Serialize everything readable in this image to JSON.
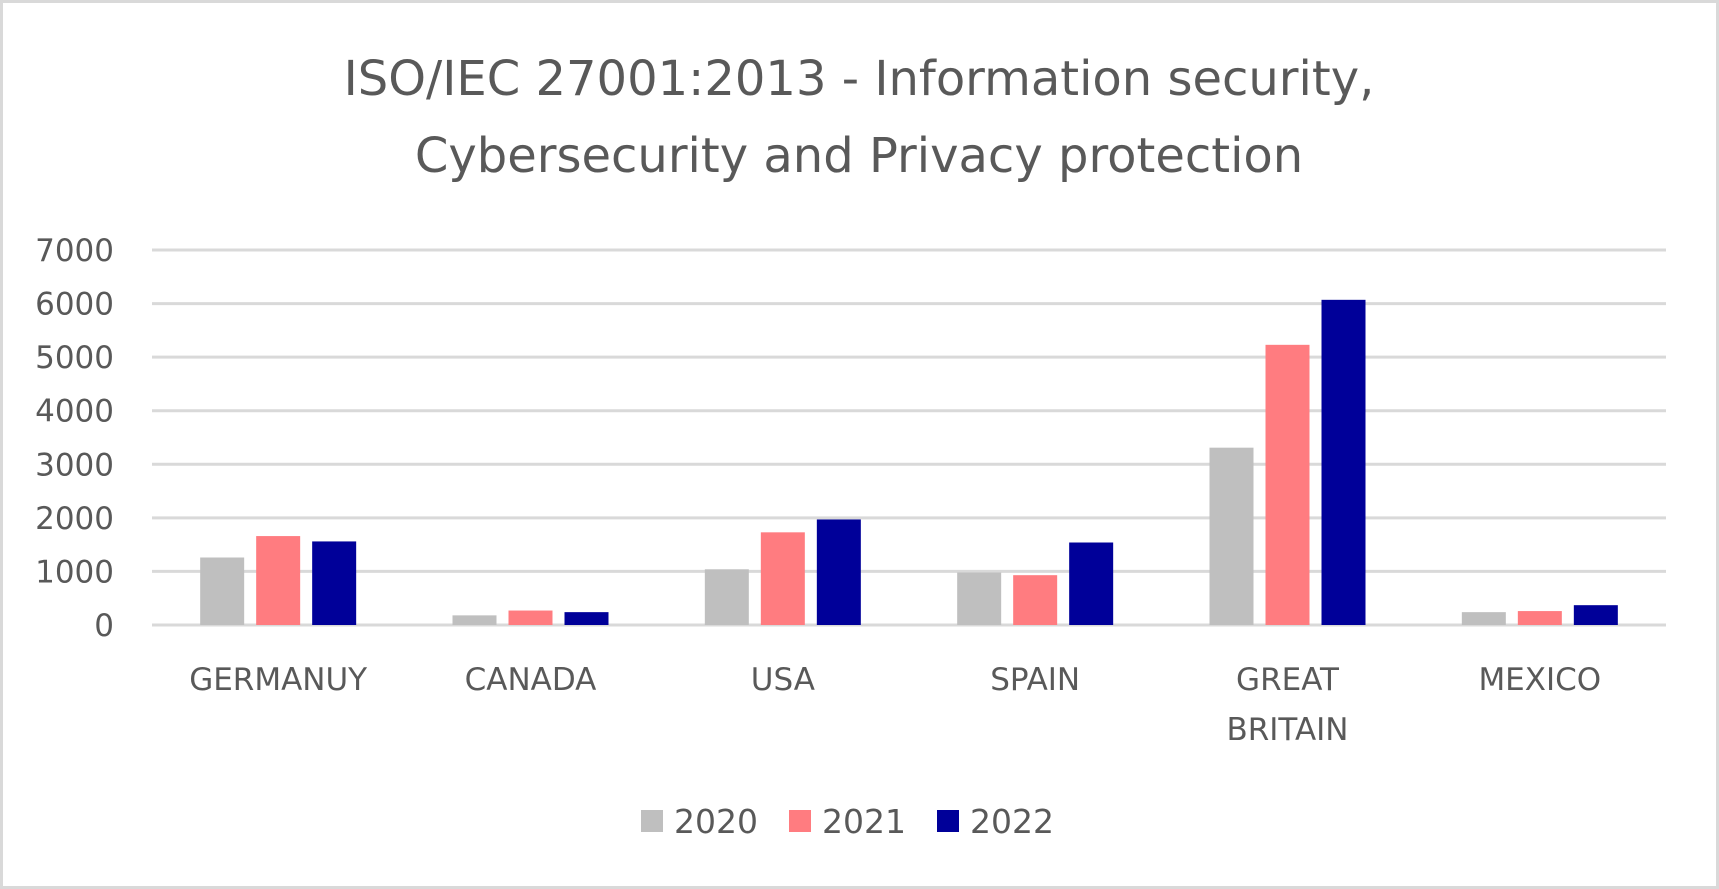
{
  "chart_data": {
    "type": "bar",
    "title": [
      "ISO/IEC 27001:2013  - Information security,",
      "Cybersecurity and Privacy protection"
    ],
    "xlabel": "",
    "ylabel": "",
    "ylim": [
      0,
      7000
    ],
    "yticks": [
      0,
      1000,
      2000,
      3000,
      4000,
      5000,
      6000,
      7000
    ],
    "grid": true,
    "legend_position": "bottom",
    "categories": [
      [
        "GERMANUY"
      ],
      [
        "CANADA"
      ],
      [
        "USA"
      ],
      [
        "SPAIN"
      ],
      [
        "GREAT",
        "BRITAIN"
      ],
      [
        "MEXICO"
      ]
    ],
    "series": [
      {
        "name": "2020",
        "color": "#bfbfbf",
        "values": [
          1260,
          180,
          1040,
          980,
          3310,
          240
        ]
      },
      {
        "name": "2021",
        "color": "#ff7c80",
        "values": [
          1660,
          270,
          1730,
          930,
          5230,
          260
        ]
      },
      {
        "name": "2022",
        "color": "#000099",
        "values": [
          1560,
          240,
          1970,
          1540,
          6070,
          370
        ]
      }
    ]
  }
}
